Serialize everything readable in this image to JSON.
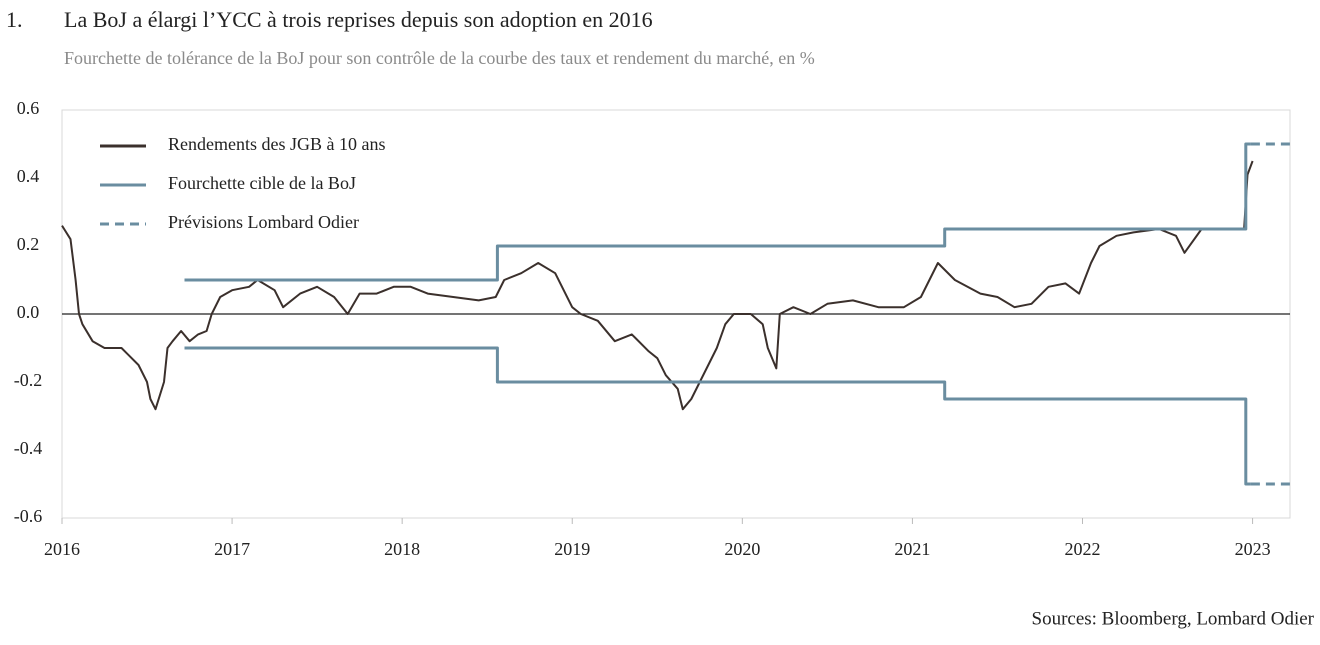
{
  "chart_data": {
    "type": "line",
    "number": "1.",
    "title": "La BoJ a élargi l’YCC à trois reprises depuis son adoption en 2016",
    "subtitle": "Fourchette de tolérance de la BoJ pour son contrôle de la courbe des taux et rendement du marché, en %",
    "source": "Sources: Bloomberg, Lombard Odier",
    "xlim": [
      2016,
      2023.22
    ],
    "xticks": [
      2016,
      2017,
      2018,
      2019,
      2020,
      2021,
      2022,
      2023
    ],
    "ylim": [
      -0.6,
      0.6
    ],
    "yticks": [
      0.6,
      0.4,
      0.2,
      {
        "value": 0,
        "label": "0.0"
      },
      -0.2,
      -0.4,
      -0.6
    ],
    "series": [
      {
        "name": "Rendements des JGB à 10 ans",
        "color": "#3b302c",
        "style": "solid",
        "x": [
          2016.0,
          2016.05,
          2016.08,
          2016.1,
          2016.12,
          2016.18,
          2016.25,
          2016.35,
          2016.45,
          2016.5,
          2016.52,
          2016.55,
          2016.6,
          2016.62,
          2016.65,
          2016.7,
          2016.75,
          2016.8,
          2016.85,
          2016.88,
          2016.93,
          2017.0,
          2017.1,
          2017.15,
          2017.25,
          2017.3,
          2017.4,
          2017.5,
          2017.6,
          2017.68,
          2017.75,
          2017.85,
          2017.95,
          2018.05,
          2018.15,
          2018.3,
          2018.45,
          2018.55,
          2018.6,
          2018.7,
          2018.8,
          2018.9,
          2019.0,
          2019.05,
          2019.15,
          2019.25,
          2019.35,
          2019.45,
          2019.5,
          2019.55,
          2019.62,
          2019.65,
          2019.7,
          2019.75,
          2019.8,
          2019.85,
          2019.9,
          2019.95,
          2020.05,
          2020.12,
          2020.15,
          2020.2,
          2020.22,
          2020.3,
          2020.4,
          2020.5,
          2020.65,
          2020.8,
          2020.95,
          2021.05,
          2021.15,
          2021.25,
          2021.4,
          2021.5,
          2021.6,
          2021.7,
          2021.8,
          2021.9,
          2021.98,
          2022.05,
          2022.1,
          2022.2,
          2022.3,
          2022.45,
          2022.55,
          2022.6,
          2022.7,
          2022.8,
          2022.95,
          2022.97,
          2023.0
        ],
        "values": [
          0.26,
          0.22,
          0.1,
          0.0,
          -0.03,
          -0.08,
          -0.1,
          -0.1,
          -0.15,
          -0.2,
          -0.25,
          -0.28,
          -0.2,
          -0.1,
          -0.08,
          -0.05,
          -0.08,
          -0.06,
          -0.05,
          0.0,
          0.05,
          0.07,
          0.08,
          0.1,
          0.07,
          0.02,
          0.06,
          0.08,
          0.05,
          0.0,
          0.06,
          0.06,
          0.08,
          0.08,
          0.06,
          0.05,
          0.04,
          0.05,
          0.1,
          0.12,
          0.15,
          0.12,
          0.02,
          0.0,
          -0.02,
          -0.08,
          -0.06,
          -0.11,
          -0.13,
          -0.18,
          -0.22,
          -0.28,
          -0.25,
          -0.2,
          -0.15,
          -0.1,
          -0.03,
          0.0,
          0.0,
          -0.03,
          -0.1,
          -0.16,
          0.0,
          0.02,
          0.0,
          0.03,
          0.04,
          0.02,
          0.02,
          0.05,
          0.15,
          0.1,
          0.06,
          0.05,
          0.02,
          0.03,
          0.08,
          0.09,
          0.06,
          0.15,
          0.2,
          0.23,
          0.24,
          0.25,
          0.23,
          0.18,
          0.25,
          0.25,
          0.25,
          0.41,
          0.45
        ]
      },
      {
        "name": "Fourchette cible de la BoJ",
        "color": "#6a8da0",
        "style": "solid",
        "x": [
          2016.72,
          2018.56,
          2018.56,
          2021.19,
          2021.19,
          2022.96,
          2022.96,
          2022.99
        ],
        "values": [
          0.1,
          0.1,
          0.2,
          0.2,
          0.25,
          0.25,
          0.5,
          0.5
        ]
      },
      {
        "color": "#6a8da0",
        "style": "solid",
        "x": [
          2016.72,
          2018.56,
          2018.56,
          2021.19,
          2021.19,
          2022.96,
          2022.96,
          2022.99
        ],
        "values": [
          -0.1,
          -0.1,
          -0.2,
          -0.2,
          -0.25,
          -0.25,
          -0.5,
          -0.5
        ]
      },
      {
        "name": "Prévisions Lombard Odier",
        "color": "#6a8da0",
        "style": "dashed",
        "x": [
          2022.99,
          2023.22
        ],
        "values": [
          0.5,
          0.5
        ]
      },
      {
        "color": "#6a8da0",
        "style": "dashed",
        "x": [
          2022.99,
          2023.22
        ],
        "values": [
          -0.5,
          -0.5
        ]
      }
    ]
  }
}
